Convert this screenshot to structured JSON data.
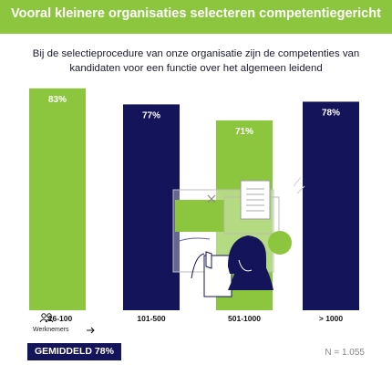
{
  "header": {
    "title": "Vooral kleinere organisaties selecteren competentiegericht"
  },
  "colors": {
    "header_bg": "#8cc63f",
    "green": "#8cc63f",
    "navy": "#14145a"
  },
  "chart_data": {
    "type": "bar",
    "subtitle": "Bij de selectieprocedure van onze organisatie zijn de competenties van kandidaten voor een functie over het algemeen leidend",
    "categories": [
      "26-100",
      "101-500",
      "501-1000",
      "> 1000"
    ],
    "values": [
      83,
      77,
      71,
      78
    ],
    "value_labels": [
      "83%",
      "77%",
      "71%",
      "78%"
    ],
    "bar_colors": [
      "#8cc63f",
      "#14145a",
      "#8cc63f",
      "#14145a"
    ],
    "first_category_note": "Werknemers",
    "first_category_icon": "people-icon",
    "note_icon": "arrow-right-icon",
    "ylim": [
      0,
      100
    ],
    "grid": false,
    "average_label": "GEMIDDELD 78%",
    "n_label": "N = 1.055"
  }
}
